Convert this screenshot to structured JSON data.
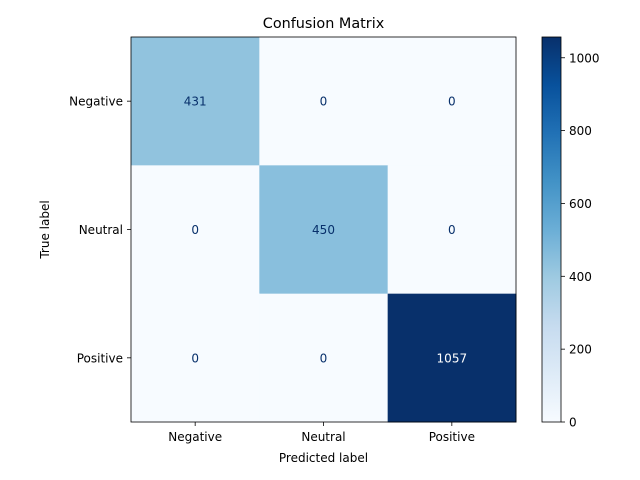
{
  "chart_data": {
    "type": "heatmap",
    "title": "Confusion Matrix",
    "xlabel": "Predicted label",
    "ylabel": "True label",
    "x_categories": [
      "Negative",
      "Neutral",
      "Positive"
    ],
    "y_categories": [
      "Negative",
      "Neutral",
      "Positive"
    ],
    "values": [
      [
        431,
        0,
        0
      ],
      [
        0,
        450,
        0
      ],
      [
        0,
        0,
        1057
      ]
    ],
    "colormap": "Blues",
    "colorbar": {
      "vmin": 0,
      "vmax": 1057,
      "ticks": [
        0,
        200,
        400,
        600,
        800,
        1000
      ]
    },
    "text_colors": {
      "light_cell": "#08306b",
      "dark_cell": "#ffffff"
    }
  }
}
